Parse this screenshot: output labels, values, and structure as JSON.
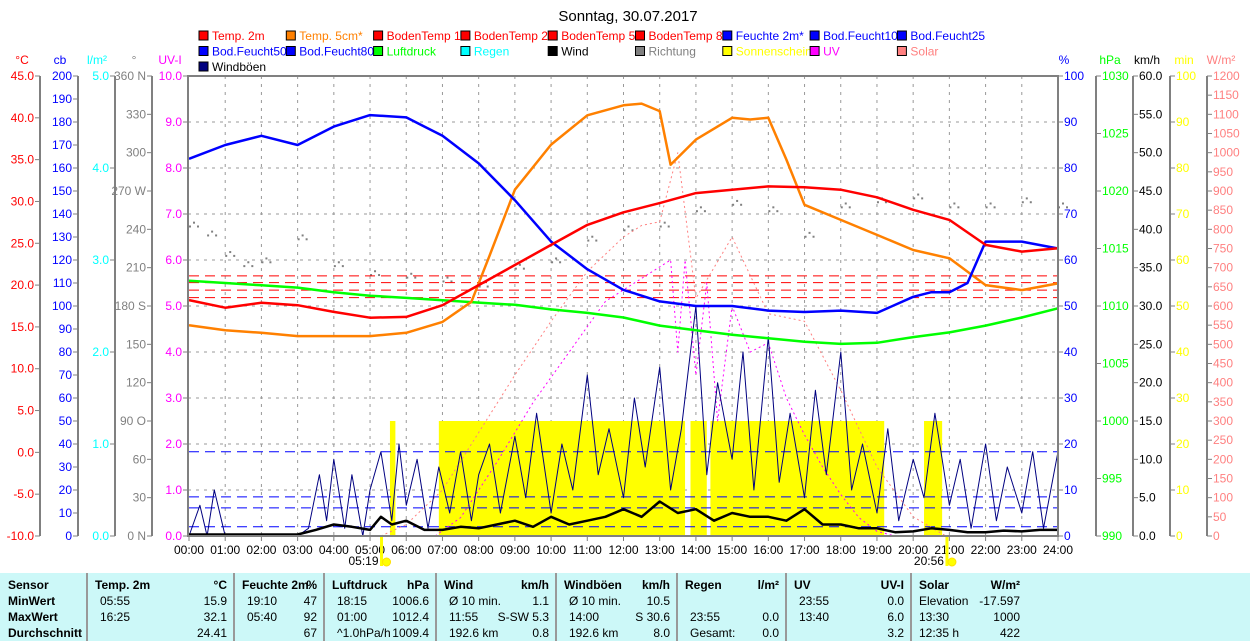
{
  "title": "Sonntag, 30.07.2017",
  "legend": [
    {
      "label": "Temp. 2m",
      "color": "#ff0000"
    },
    {
      "label": "Temp. 5cm*",
      "color": "#ff8000"
    },
    {
      "label": "BodenTemp 10",
      "color": "#ff0000"
    },
    {
      "label": "BodenTemp 25",
      "color": "#ff0000"
    },
    {
      "label": "BodenTemp 50",
      "color": "#ff0000"
    },
    {
      "label": "BodenTemp 80",
      "color": "#ff0000"
    },
    {
      "label": "Feuchte 2m*",
      "color": "#0000ff"
    },
    {
      "label": "Bod.Feucht10",
      "color": "#0000ff"
    },
    {
      "label": "Bod.Feucht25",
      "color": "#0000ff"
    },
    {
      "label": "Bod.Feucht50",
      "color": "#0000ff"
    },
    {
      "label": "Bod.Feucht80",
      "color": "#0000ff"
    },
    {
      "label": "Luftdruck",
      "color": "#00ff00"
    },
    {
      "label": "Regen",
      "color": "#00ffff"
    },
    {
      "label": "Wind",
      "color": "#000000"
    },
    {
      "label": "Richtung",
      "color": "#808080"
    },
    {
      "label": "Sonnenschein",
      "color": "#ffff00"
    },
    {
      "label": "UV",
      "color": "#ff00ff"
    },
    {
      "label": "Solar",
      "color": "#ff8080"
    },
    {
      "label": "Windböen",
      "color": "#000080"
    }
  ],
  "chart_data": {
    "type": "line",
    "title": "Sonntag, 30.07.2017",
    "x_hours": [
      0,
      1,
      2,
      3,
      4,
      5,
      6,
      7,
      8,
      9,
      10,
      11,
      12,
      13,
      14,
      15,
      16,
      17,
      18,
      19,
      20,
      21,
      22,
      23,
      24
    ],
    "x_tick_labels": [
      "00:00",
      "01:00",
      "02:00",
      "03:00",
      "04:00",
      "05:00",
      "06:00",
      "07:00",
      "08:00",
      "09:00",
      "10:00",
      "11:00",
      "12:00",
      "13:00",
      "14:00",
      "15:00",
      "16:00",
      "17:00",
      "18:00",
      "19:00",
      "20:00",
      "21:00",
      "22:00",
      "23:00",
      "24:00"
    ],
    "axes": {
      "left": [
        {
          "title": "°C",
          "color": "#ff0000",
          "min": -10,
          "max": 45,
          "ticks": [
            "45.0",
            "40.0",
            "35.0",
            "30.0",
            "25.0",
            "20.0",
            "15.0",
            "10.0",
            "5.0",
            "0.0",
            "-5.0",
            "-10.0"
          ]
        },
        {
          "title": "cb",
          "color": "#0000ff",
          "min": 0,
          "max": 200,
          "ticks": [
            "200",
            "190",
            "180",
            "170",
            "160",
            "150",
            "140",
            "130",
            "120",
            "110",
            "100",
            "90",
            "80",
            "70",
            "60",
            "50",
            "40",
            "30",
            "20",
            "10",
            "0"
          ]
        },
        {
          "title": "l/m²",
          "color": "#00ffff",
          "min": 0,
          "max": 5,
          "ticks": [
            "5.0",
            "4.0",
            "3.0",
            "2.0",
            "1.0",
            "0.0"
          ]
        },
        {
          "title": "°",
          "color": "#808080",
          "min": 0,
          "max": 360,
          "ticks": [
            "360 N",
            "330",
            "300",
            "270 W",
            "240",
            "210",
            "180 S",
            "150",
            "120",
            "90  O",
            "60",
            "30",
            "0  N"
          ]
        },
        {
          "title": "UV-I",
          "color": "#ff00ff",
          "min": 0,
          "max": 10,
          "ticks": [
            "10.0",
            "9.0",
            "8.0",
            "7.0",
            "6.0",
            "5.0",
            "4.0",
            "3.0",
            "2.0",
            "1.0",
            "0.0"
          ]
        }
      ],
      "right": [
        {
          "title": "%",
          "color": "#0000ff",
          "min": 0,
          "max": 100,
          "ticks": [
            "100",
            "90",
            "80",
            "70",
            "60",
            "50",
            "40",
            "30",
            "20",
            "10",
            "0"
          ]
        },
        {
          "title": "hPa",
          "color": "#00ff00",
          "min": 990,
          "max": 1030,
          "ticks": [
            "1030",
            "1025",
            "1020",
            "1015",
            "1010",
            "1005",
            "1000",
            "995",
            "990"
          ]
        },
        {
          "title": "km/h",
          "color": "#000000",
          "min": 0,
          "max": 60,
          "ticks": [
            "60.0",
            "55.0",
            "50.0",
            "45.0",
            "40.0",
            "35.0",
            "30.0",
            "25.0",
            "20.0",
            "15.0",
            "10.0",
            "5.0",
            "0.0"
          ]
        },
        {
          "title": "min",
          "color": "#ffff00",
          "min": 0,
          "max": 100,
          "ticks": [
            "100",
            "90",
            "80",
            "70",
            "60",
            "50",
            "40",
            "30",
            "20",
            "10",
            "0"
          ]
        },
        {
          "title": "W/m²",
          "color": "#ff8080",
          "min": 0,
          "max": 1200,
          "ticks": [
            "1200",
            "1150",
            "1100",
            "1050",
            "1000",
            "950",
            "900",
            "850",
            "800",
            "750",
            "700",
            "650",
            "600",
            "550",
            "500",
            "450",
            "400",
            "350",
            "300",
            "250",
            "200",
            "150",
            "100",
            "50",
            "0"
          ]
        }
      ]
    },
    "series": [
      {
        "name": "Temp. 2m",
        "axis": "°C",
        "color": "#ff0000",
        "x": [
          0,
          1,
          2,
          3,
          4,
          5,
          6,
          7,
          8,
          9,
          10,
          11,
          12,
          13,
          14,
          15,
          16,
          17,
          18,
          19,
          20,
          21,
          22,
          23,
          24
        ],
        "values": [
          18.2,
          17.3,
          17.9,
          17.6,
          16.8,
          16.1,
          16.2,
          17.6,
          20.0,
          22.4,
          24.8,
          27.2,
          28.7,
          29.8,
          31.0,
          31.4,
          31.8,
          31.7,
          31.4,
          30.5,
          29.0,
          27.8,
          24.8,
          24.0,
          24.4
        ]
      },
      {
        "name": "Temp. 5cm*",
        "axis": "°C",
        "color": "#ff8000",
        "x": [
          0,
          1,
          2,
          3,
          4,
          5,
          6,
          7,
          7.8,
          8.3,
          9,
          10,
          11,
          12,
          12.5,
          13,
          13.3,
          14,
          15,
          15.5,
          16,
          16.5,
          17,
          18,
          19,
          20,
          21,
          22,
          23,
          24
        ],
        "values": [
          15.2,
          14.6,
          14.3,
          13.9,
          13.9,
          13.9,
          14.3,
          15.6,
          18.0,
          23.5,
          31.4,
          36.8,
          40.3,
          41.5,
          41.7,
          40.8,
          34.4,
          37.4,
          40.0,
          39.8,
          40.0,
          35.0,
          29.6,
          27.8,
          26.0,
          24.2,
          23.2,
          20.0,
          19.4,
          20.2
        ]
      },
      {
        "name": "Feuchte 2m*",
        "axis": "%",
        "color": "#0000ff",
        "x": [
          0,
          1,
          2,
          3,
          4,
          5,
          6,
          7,
          8,
          9,
          10,
          11,
          12,
          13,
          14,
          15,
          16,
          17,
          18,
          19,
          20,
          20.5,
          21,
          21.5,
          22,
          23,
          24
        ],
        "values": [
          82,
          85,
          87,
          85,
          89,
          91.5,
          91,
          87,
          81,
          73,
          64,
          58,
          53.5,
          51,
          50,
          50,
          49,
          48.7,
          49,
          48.5,
          52,
          53,
          53,
          55,
          64,
          64,
          62.5
        ]
      },
      {
        "name": "Luftdruck",
        "axis": "hPa",
        "color": "#00ff00",
        "x": [
          0,
          1,
          2,
          3,
          4,
          5,
          6,
          7,
          8,
          9,
          10,
          11,
          12,
          13,
          14,
          15,
          16,
          17,
          18,
          19,
          20,
          21,
          22,
          23,
          24
        ],
        "values": [
          1012.2,
          1012.0,
          1011.8,
          1011.6,
          1011.2,
          1010.9,
          1010.7,
          1010.5,
          1010.3,
          1010.1,
          1009.7,
          1009.4,
          1009.0,
          1008.3,
          1007.9,
          1007.5,
          1007.2,
          1006.9,
          1006.7,
          1006.8,
          1007.3,
          1007.7,
          1008.3,
          1009.0,
          1009.8
        ]
      },
      {
        "name": "Windböen",
        "axis": "km/h",
        "color": "#000080",
        "x": [
          0,
          0.3,
          0.5,
          0.7,
          1,
          2,
          3,
          3.3,
          3.6,
          3.8,
          4,
          4.3,
          4.5,
          4.8,
          5,
          5.3,
          5.6,
          5.8,
          6,
          6.3,
          6.6,
          6.9,
          7.2,
          7.5,
          7.8,
          8,
          8.3,
          8.6,
          9,
          9.3,
          9.6,
          10,
          10.3,
          10.6,
          11,
          11.3,
          11.6,
          12,
          12.3,
          12.6,
          13,
          13.3,
          13.6,
          14,
          14.3,
          14.6,
          15,
          15.3,
          15.6,
          16,
          16.3,
          16.6,
          17,
          17.3,
          17.6,
          18,
          18.3,
          18.6,
          19,
          19.3,
          19.6,
          20,
          20.3,
          20.6,
          21,
          21.3,
          21.6,
          22,
          22.3,
          22.6,
          23,
          23.3,
          23.6,
          24
        ],
        "values": [
          0,
          4,
          0,
          6,
          0,
          0,
          0,
          1,
          8,
          2,
          10,
          1,
          8,
          0,
          6,
          11,
          2,
          12,
          4,
          10,
          1,
          9,
          3,
          11,
          2,
          8,
          12,
          3,
          13,
          5,
          16,
          3,
          12,
          6,
          21,
          8,
          14,
          5,
          18,
          9,
          22,
          6,
          14,
          30,
          8,
          20,
          10,
          24,
          6,
          26,
          7,
          16,
          5,
          19,
          8,
          24,
          6,
          12,
          3,
          14,
          2,
          10,
          5,
          16,
          4,
          10,
          1,
          12,
          2,
          9,
          3,
          11,
          1,
          11
        ]
      },
      {
        "name": "Wind",
        "axis": "km/h",
        "color": "#000000",
        "x": [
          0,
          1,
          2,
          3,
          3.5,
          4,
          4.5,
          5,
          5.3,
          5.6,
          6,
          6.5,
          7,
          7.5,
          8,
          8.5,
          9,
          9.5,
          10,
          10.5,
          11,
          11.5,
          12,
          12.5,
          13,
          13.5,
          14,
          14.5,
          15,
          15.5,
          16,
          16.5,
          17,
          17.5,
          18,
          18.5,
          19,
          19.5,
          20,
          20.5,
          21,
          21.5,
          22,
          22.5,
          23,
          23.5,
          24
        ],
        "values": [
          0.2,
          0.2,
          0.2,
          0.2,
          0.8,
          1.5,
          1.2,
          0.8,
          2.5,
          1.5,
          2.0,
          0.8,
          0.8,
          1.2,
          1.0,
          1.5,
          2.0,
          1.2,
          2.5,
          1.5,
          2.0,
          2.5,
          3.5,
          2.5,
          4.5,
          3.0,
          3.5,
          2.0,
          3.0,
          2.5,
          2.5,
          2.0,
          3.5,
          1.5,
          1.5,
          1.0,
          1.0,
          0.5,
          0.6,
          1.0,
          0.8,
          0.5,
          0.5,
          0.7,
          0.6,
          0.8,
          0.8
        ]
      },
      {
        "name": "UV",
        "axis": "UV-I",
        "color": "#ff00ff",
        "x": [
          6.8,
          7.5,
          8.5,
          9.5,
          10.5,
          11.5,
          12.5,
          13.3,
          13.5,
          13.7,
          14,
          14.3,
          14.6,
          15,
          15.5,
          16,
          16.5,
          17,
          17.5,
          18,
          18.5,
          19,
          19.5
        ],
        "values": [
          0,
          0.4,
          1.6,
          2.9,
          4.0,
          5.1,
          5.6,
          6.0,
          4.0,
          6.0,
          3.5,
          5.5,
          2.5,
          5.0,
          4.0,
          4.2,
          3.0,
          2.2,
          1.5,
          0.9,
          0.4,
          0.1,
          0
        ]
      },
      {
        "name": "Solar",
        "axis": "W/m²",
        "color": "#ff8080",
        "x": [
          5.3,
          6,
          7,
          8,
          9,
          10,
          11,
          12,
          12.5,
          13,
          13.5,
          14,
          15,
          16,
          17,
          18,
          19,
          20,
          20.9
        ],
        "values": [
          0,
          30,
          120,
          270,
          420,
          560,
          690,
          780,
          810,
          820,
          1000,
          620,
          780,
          580,
          560,
          380,
          180,
          50,
          0
        ]
      },
      {
        "name": "BodenTemp 10",
        "axis": "°C",
        "color": "#ff0000",
        "dash": true,
        "x": [
          0,
          24
        ],
        "values": [
          21.1,
          21.1
        ]
      },
      {
        "name": "BodenTemp 25",
        "axis": "°C",
        "color": "#ff0000",
        "dash": true,
        "x": [
          0,
          24
        ],
        "values": [
          20.3,
          20.3
        ]
      },
      {
        "name": "BodenTemp 50",
        "axis": "°C",
        "color": "#ff0000",
        "dash": true,
        "x": [
          0,
          24
        ],
        "values": [
          19.4,
          19.4
        ]
      },
      {
        "name": "BodenTemp 80",
        "axis": "°C",
        "color": "#ff0000",
        "dash": true,
        "x": [
          0,
          24
        ],
        "values": [
          18.5,
          18.5
        ]
      },
      {
        "name": "Bod.Feucht10",
        "axis": "%",
        "color": "#0000ff",
        "dash": true,
        "x": [
          0,
          24
        ],
        "values": [
          18.3,
          18.3
        ]
      },
      {
        "name": "Bod.Feucht25",
        "axis": "%",
        "color": "#0000ff",
        "dash": true,
        "x": [
          0,
          24
        ],
        "values": [
          8.5,
          8.5
        ]
      },
      {
        "name": "Bod.Feucht50",
        "axis": "%",
        "color": "#0000ff",
        "dash": true,
        "x": [
          0,
          24
        ],
        "values": [
          6.1,
          6.1
        ]
      },
      {
        "name": "Bod.Feucht80",
        "axis": "%",
        "color": "#0000ff",
        "dash": true,
        "x": [
          0,
          24
        ],
        "values": [
          2.0,
          2.0
        ]
      }
    ],
    "richtung": {
      "axis": "°",
      "x": [
        0,
        0.5,
        1,
        1.5,
        2,
        3,
        4,
        5,
        6,
        7,
        8,
        9,
        10,
        11,
        12,
        13,
        14,
        15,
        16,
        17,
        18,
        19,
        20,
        21,
        22,
        23,
        24
      ],
      "values": [
        243,
        236,
        220,
        212,
        215,
        233,
        212,
        205,
        203,
        200,
        196,
        210,
        215,
        232,
        240,
        243,
        255,
        260,
        255,
        235,
        258,
        262,
        265,
        258,
        258,
        262,
        258
      ]
    },
    "sonnenschein": {
      "axis": "min",
      "value": 5,
      "intervals": [
        [
          5.55,
          5.7
        ],
        [
          6.9,
          13.7
        ],
        [
          13.85,
          14.3
        ],
        [
          14.4,
          19.2
        ],
        [
          20.3,
          20.8
        ]
      ]
    },
    "sunrise": "05:19",
    "sunset": "20:56",
    "sunrise_h": 5.317,
    "sunset_h": 20.933
  },
  "table": {
    "headers": [
      "Sensor",
      "Temp. 2m",
      "°C",
      "Feuchte 2m",
      "%",
      "Luftdruck",
      "hPa",
      "Wind",
      "km/h",
      "Windböen",
      "km/h",
      "Regen",
      "l/m²",
      "UV",
      "UV-I",
      "Solar",
      "W/m²"
    ],
    "rows": [
      {
        "label": "MinWert",
        "cells": [
          "05:55",
          "15.9",
          "19:10",
          "47",
          "18:15",
          "1006.6",
          "Ø 10 min.",
          "1.1",
          "Ø 10 min.",
          "10.5",
          "",
          "",
          "23:55",
          "0.0",
          "Elevation",
          "-17.597"
        ]
      },
      {
        "label": "MaxWert",
        "cells": [
          "16:25",
          "32.1",
          "05:40",
          "92",
          "01:00",
          "1012.4",
          "11:55",
          "S-SW 5.3",
          "14:00",
          "S 30.6",
          "23:55",
          "0.0",
          "13:40",
          "6.0",
          "13:30",
          "1000"
        ]
      },
      {
        "label": "Durchschnitt",
        "cells": [
          "",
          "24.41",
          "",
          "67",
          "^1.0hPa/h",
          "1009.4",
          "192.6 km",
          "0.8",
          "192.6 km",
          "8.0",
          "Gesamt:",
          "0.0",
          "",
          "3.2",
          "12:35 h",
          "422"
        ]
      }
    ]
  }
}
